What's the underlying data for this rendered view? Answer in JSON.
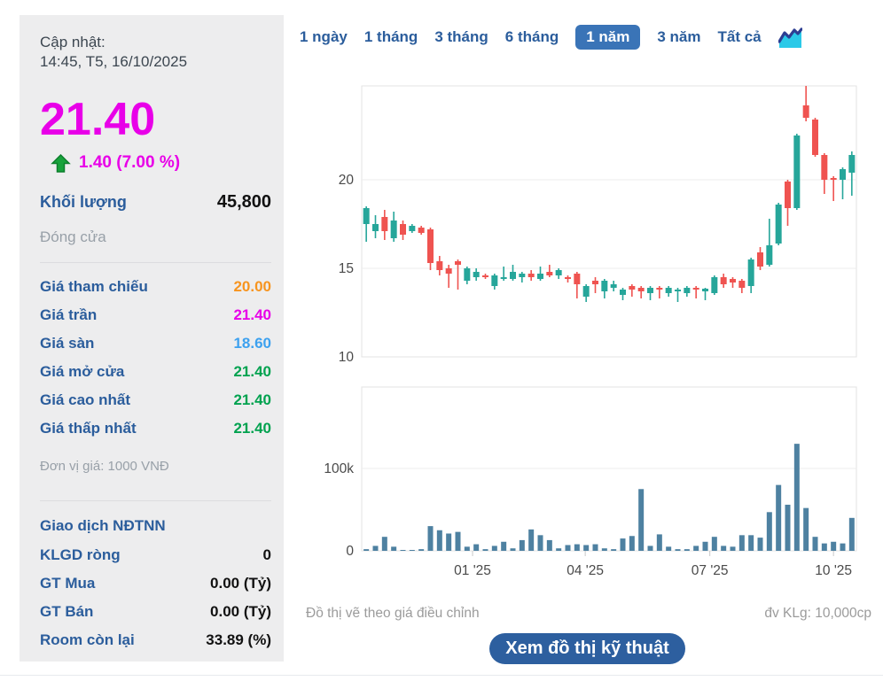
{
  "sidebar": {
    "updated_label": "Cập nhật:",
    "updated_time": "14:45, T5, 16/10/2025",
    "price": "21.40",
    "change": "1.40 (7.00 %)",
    "volume_label": "Khối lượng",
    "volume_value": "45,800",
    "session_status": "Đóng cửa",
    "price_rows": [
      {
        "label": "Giá tham chiếu",
        "value": "20.00",
        "color": "#f7941e"
      },
      {
        "label": "Giá trần",
        "value": "21.40",
        "color": "#e800e8"
      },
      {
        "label": "Giá sàn",
        "value": "18.60",
        "color": "#3da1ef"
      },
      {
        "label": "Giá mở cửa",
        "value": "21.40",
        "color": "#00a24f"
      },
      {
        "label": "Giá cao nhất",
        "value": "21.40",
        "color": "#00a24f"
      },
      {
        "label": "Giá thấp nhất",
        "value": "21.40",
        "color": "#00a24f"
      }
    ],
    "unit_note": "Đơn vị giá: 1000 VNĐ",
    "foreign_section": {
      "title": "Giao dịch NĐTNN",
      "rows": [
        {
          "label": "KLGD ròng",
          "value": "0"
        },
        {
          "label": "GT Mua",
          "value": "0.00 (Tỷ)"
        },
        {
          "label": "GT Bán",
          "value": "0.00 (Tỷ)"
        },
        {
          "label": "Room còn lại",
          "value": "33.89 (%)"
        }
      ]
    }
  },
  "tabs": {
    "items": [
      {
        "label": "1 ngày",
        "selected": false
      },
      {
        "label": "1 tháng",
        "selected": false
      },
      {
        "label": "3 tháng",
        "selected": false
      },
      {
        "label": "6 tháng",
        "selected": false
      },
      {
        "label": "1 năm",
        "selected": true
      },
      {
        "label": "3 năm",
        "selected": false
      },
      {
        "label": "Tất cả",
        "selected": false
      }
    ],
    "selected_bg": "#3a74b7",
    "chart_icon": "area-chart-icon"
  },
  "footer": {
    "left_note": "Đồ thị vẽ theo giá điều chỉnh",
    "right_note": "đv KLg: 10,000cp",
    "button_label": "Xem đồ thị kỹ thuật"
  },
  "chart_data": {
    "type": "candlestick",
    "period": "1 năm",
    "price_axis": {
      "ticks": [
        {
          "value": 20,
          "label": "20"
        },
        {
          "value": 15,
          "label": "15"
        },
        {
          "value": 10,
          "label": "10"
        }
      ],
      "range": [
        10,
        25.3
      ]
    },
    "volume_axis": {
      "ticks": [
        {
          "value": 100000,
          "label": "100k"
        },
        {
          "value": 0,
          "label": "0"
        }
      ],
      "range": [
        0,
        199000
      ]
    },
    "x_axis": {
      "ticks": [
        {
          "index": 11.6,
          "label": "01 '25"
        },
        {
          "index": 23.9,
          "label": "04 '25"
        },
        {
          "index": 37.5,
          "label": "07 '25"
        },
        {
          "index": 51.0,
          "label": "10 '25"
        }
      ]
    },
    "colors": {
      "up": "#26a69a",
      "down": "#ef5350",
      "volume": "#4e81a1",
      "grid": "#ececec",
      "border": "#e3e3e3",
      "axis_text": "#4a4a4a",
      "tick": "#c9c9c9"
    },
    "candles": [
      [
        17.5,
        18.5,
        16.5,
        18.4
      ],
      [
        17.1,
        18.0,
        16.7,
        17.5
      ],
      [
        17.9,
        18.3,
        16.6,
        17.1
      ],
      [
        16.7,
        18.2,
        16.5,
        17.7
      ],
      [
        17.5,
        17.7,
        16.6,
        16.9
      ],
      [
        17.1,
        17.5,
        17.0,
        17.4
      ],
      [
        17.3,
        17.4,
        16.9,
        17.0
      ],
      [
        17.2,
        17.3,
        14.9,
        15.3
      ],
      [
        15.4,
        15.7,
        14.6,
        14.9
      ],
      [
        15.0,
        15.2,
        13.9,
        14.7
      ],
      [
        15.4,
        15.5,
        13.8,
        15.2
      ],
      [
        14.3,
        15.1,
        14.1,
        15.0
      ],
      [
        14.5,
        15.0,
        14.3,
        14.8
      ],
      [
        14.6,
        14.7,
        14.4,
        14.5
      ],
      [
        14.0,
        14.7,
        13.8,
        14.6
      ],
      [
        14.4,
        15.1,
        14.3,
        14.5
      ],
      [
        14.4,
        15.2,
        14.3,
        14.8
      ],
      [
        14.5,
        14.8,
        14.2,
        14.7
      ],
      [
        14.7,
        14.9,
        14.3,
        14.5
      ],
      [
        14.4,
        15.1,
        14.3,
        14.7
      ],
      [
        14.8,
        15.2,
        14.5,
        14.6
      ],
      [
        14.6,
        15.0,
        14.4,
        14.9
      ],
      [
        14.5,
        14.6,
        14.2,
        14.4
      ],
      [
        14.7,
        14.8,
        13.3,
        14.1
      ],
      [
        13.4,
        14.1,
        13.1,
        14.0
      ],
      [
        14.3,
        14.5,
        13.6,
        14.1
      ],
      [
        13.7,
        14.4,
        13.3,
        14.3
      ],
      [
        13.9,
        14.3,
        13.7,
        14.1
      ],
      [
        13.5,
        13.9,
        13.2,
        13.8
      ],
      [
        14.0,
        14.1,
        13.4,
        13.8
      ],
      [
        13.9,
        14.0,
        13.3,
        13.7
      ],
      [
        13.6,
        14.0,
        13.2,
        13.9
      ],
      [
        13.9,
        14.0,
        13.3,
        13.8
      ],
      [
        13.6,
        14.0,
        13.4,
        13.9
      ],
      [
        13.7,
        13.9,
        13.1,
        13.8
      ],
      [
        13.6,
        14.0,
        13.4,
        13.9
      ],
      [
        13.9,
        14.0,
        13.3,
        13.8
      ],
      [
        13.7,
        13.9,
        13.2,
        13.85
      ],
      [
        13.6,
        14.6,
        13.5,
        14.5
      ],
      [
        14.5,
        14.7,
        13.9,
        14.1
      ],
      [
        14.4,
        14.5,
        13.9,
        14.2
      ],
      [
        14.3,
        14.4,
        13.6,
        13.9
      ],
      [
        14.0,
        15.6,
        13.6,
        15.5
      ],
      [
        15.9,
        16.2,
        14.9,
        15.1
      ],
      [
        15.2,
        17.8,
        15.1,
        16.3
      ],
      [
        16.4,
        18.7,
        16.3,
        18.6
      ],
      [
        19.9,
        20.0,
        17.4,
        18.4
      ],
      [
        18.4,
        22.6,
        18.3,
        22.5
      ],
      [
        24.2,
        25.3,
        23.3,
        23.5
      ],
      [
        23.4,
        23.5,
        21.3,
        21.4
      ],
      [
        21.4,
        21.5,
        19.2,
        20.0
      ],
      [
        20.1,
        20.2,
        18.8,
        20.0
      ],
      [
        20.0,
        20.7,
        18.9,
        20.6
      ],
      [
        20.4,
        21.6,
        19.1,
        21.4
      ]
    ],
    "volumes": [
      2000,
      6000,
      17000,
      5000,
      500,
      1000,
      2000,
      30000,
      25000,
      21000,
      23000,
      5000,
      8000,
      2000,
      6000,
      11000,
      3000,
      13000,
      26000,
      19000,
      13000,
      3000,
      7000,
      8000,
      7000,
      8000,
      3000,
      2000,
      15000,
      18000,
      75000,
      6000,
      20000,
      5000,
      2000,
      2000,
      6000,
      11000,
      17000,
      6000,
      5000,
      19000,
      19000,
      16000,
      47000,
      80000,
      56000,
      130000,
      52000,
      17000,
      9000,
      11000,
      9000,
      40000
    ]
  }
}
